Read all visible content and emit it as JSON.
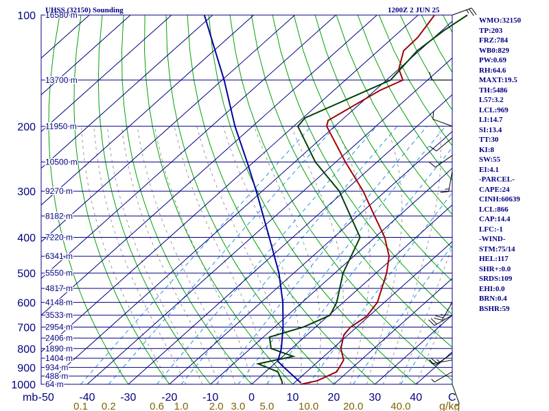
{
  "header": {
    "station": "UHSS (32150) Sounding",
    "time": "1200Z  2 JUN 25"
  },
  "stats": [
    "WMO:32150",
    "TP:203",
    "FRZ:784",
    "WB0:829",
    "PW:0.69",
    "RH:64.6",
    "MAXT:19.5",
    "TH:5486",
    "L57:3.2",
    "LCL:969",
    "LI:14.7",
    "SI:13.4",
    "TT:30",
    "KI:8",
    "SW:55",
    "EI:4.1",
    "-PARCEL-",
    "CAPE:24",
    "CINH:60639",
    "LCL:866",
    "CAP:14.4",
    "LFC:-1",
    "-WIND-",
    "STM:75/14",
    "HEL:117",
    "SHR+:0.0",
    "SRDS:109",
    "EHI:0.0",
    "BRN:0.4",
    "BSHR:59"
  ],
  "colors": {
    "isobar": "#000080",
    "isotherm": "#000080",
    "dry_adiabat": "#00a000",
    "moist_adiabat": "#999999",
    "mixing_ratio": "#2090e0",
    "temperature": "#a00000",
    "dewpoint": "#004000",
    "parcel": "#0000a0",
    "axis_text": "#000080",
    "mixing_text": "#806000"
  },
  "chart_data": {
    "type": "line",
    "chart_kind": "skew-T log-P sounding",
    "xlabel": "C",
    "x_ticks": [
      "-50",
      "-40",
      "-30",
      "-20",
      "-10",
      "0",
      "10",
      "20",
      "30",
      "40"
    ],
    "pressure_unit": "mb",
    "pressure_ticks": [
      100,
      200,
      300,
      400,
      500,
      600,
      700,
      800,
      900,
      1000
    ],
    "pressure_range": [
      100,
      1000
    ],
    "height_labels": [
      {
        "p": 100,
        "label": "16580 m"
      },
      {
        "p": 150,
        "label": "13700 m"
      },
      {
        "p": 200,
        "label": "11950 m"
      },
      {
        "p": 250,
        "label": "10500 m"
      },
      {
        "p": 300,
        "label": "9270 m"
      },
      {
        "p": 350,
        "label": "8182 m"
      },
      {
        "p": 400,
        "label": "7220 m"
      },
      {
        "p": 450,
        "label": "6341 m"
      },
      {
        "p": 500,
        "label": "5550 m"
      },
      {
        "p": 550,
        "label": "4817 m"
      },
      {
        "p": 600,
        "label": "4148 m"
      },
      {
        "p": 650,
        "label": "3533 m"
      },
      {
        "p": 700,
        "label": "2954 m"
      },
      {
        "p": 750,
        "label": "2406 m"
      },
      {
        "p": 800,
        "label": "1890 m"
      },
      {
        "p": 850,
        "label": "1404 m"
      },
      {
        "p": 900,
        "label": "934 m"
      },
      {
        "p": 950,
        "label": "488 m"
      },
      {
        "p": 1000,
        "label": "64 m"
      }
    ],
    "mixing_ratio_unit": "g/kg",
    "mixing_ratio_labels": [
      "0.1",
      "0.2",
      "0.6",
      "1.0",
      "2.0",
      "3.0",
      "5.0",
      "10.0",
      "20.0",
      "40.0"
    ],
    "mixing_ratio_values": [
      0.1,
      0.2,
      0.6,
      1.0,
      2.0,
      3.0,
      5.0,
      10.0,
      20.0,
      40.0
    ],
    "series": [
      {
        "key": "temperature",
        "points": [
          {
            "p": 1000,
            "t": 12.0
          },
          {
            "p": 978,
            "t": 15.0
          },
          {
            "p": 925,
            "t": 17.3
          },
          {
            "p": 860,
            "t": 15.8
          },
          {
            "p": 800,
            "t": 12.0
          },
          {
            "p": 735,
            "t": 9.0
          },
          {
            "p": 700,
            "t": 8.5
          },
          {
            "p": 655,
            "t": 9.5
          },
          {
            "p": 600,
            "t": 8.3
          },
          {
            "p": 500,
            "t": 2.6
          },
          {
            "p": 450,
            "t": -1.4
          },
          {
            "p": 400,
            "t": -7.6
          },
          {
            "p": 350,
            "t": -15.9
          },
          {
            "p": 300,
            "t": -25.4
          },
          {
            "p": 250,
            "t": -37.7
          },
          {
            "p": 200,
            "t": -52.0
          },
          {
            "p": 193,
            "t": -53.2
          },
          {
            "p": 160,
            "t": -48.8
          },
          {
            "p": 150,
            "t": -46.0
          },
          {
            "p": 140,
            "t": -50.0
          },
          {
            "p": 125,
            "t": -53.8
          },
          {
            "p": 115,
            "t": -54.0
          },
          {
            "p": 100,
            "t": -56.0
          }
        ]
      },
      {
        "key": "dewpoint",
        "points": [
          {
            "p": 1000,
            "t": 7.5
          },
          {
            "p": 980,
            "t": 6.5
          },
          {
            "p": 925,
            "t": 3.0
          },
          {
            "p": 880,
            "t": -4.0
          },
          {
            "p": 840,
            "t": 2.5
          },
          {
            "p": 800,
            "t": -5.0
          },
          {
            "p": 745,
            "t": -8.5
          },
          {
            "p": 700,
            "t": -3.0
          },
          {
            "p": 650,
            "t": 0.3
          },
          {
            "p": 600,
            "t": -1.6
          },
          {
            "p": 500,
            "t": -8.0
          },
          {
            "p": 400,
            "t": -13.6
          },
          {
            "p": 300,
            "t": -31.2
          },
          {
            "p": 250,
            "t": -45.0
          },
          {
            "p": 200,
            "t": -59.0
          },
          {
            "p": 190,
            "t": -59.5
          },
          {
            "p": 150,
            "t": -49.0
          },
          {
            "p": 125,
            "t": -50.5
          },
          {
            "p": 110,
            "t": -49.5
          },
          {
            "p": 100,
            "t": -48.0
          }
        ]
      },
      {
        "key": "parcel",
        "points": [
          {
            "p": 990,
            "t": 11.5
          },
          {
            "p": 900,
            "t": 3.3
          },
          {
            "p": 866,
            "t": 0.1
          },
          {
            "p": 800,
            "t": -2.5
          },
          {
            "p": 700,
            "t": -7.9
          },
          {
            "p": 600,
            "t": -14.7
          },
          {
            "p": 500,
            "t": -23.6
          },
          {
            "p": 400,
            "t": -35.7
          },
          {
            "p": 300,
            "t": -51.4
          },
          {
            "p": 250,
            "t": -61.6
          },
          {
            "p": 200,
            "t": -74.3
          },
          {
            "p": 150,
            "t": -89.5
          },
          {
            "p": 100,
            "t": -112.0
          }
        ]
      }
    ],
    "wind_barbs": [
      {
        "p": 100,
        "dir": 70,
        "spd": 25
      },
      {
        "p": 150,
        "dir": 270,
        "spd": 10
      },
      {
        "p": 200,
        "dir": 290,
        "spd": 10
      },
      {
        "p": 215,
        "dir": 230,
        "spd": 10
      },
      {
        "p": 240,
        "dir": 235,
        "spd": 10
      },
      {
        "p": 265,
        "dir": 190,
        "spd": 15
      },
      {
        "p": 600,
        "dir": 210,
        "spd": 25
      },
      {
        "p": 650,
        "dir": 240,
        "spd": 20
      },
      {
        "p": 825,
        "dir": 235,
        "spd": 25
      },
      {
        "p": 860,
        "dir": 260,
        "spd": 5
      },
      {
        "p": 925,
        "dir": 240,
        "spd": 5
      },
      {
        "p": 1000,
        "dir": 160,
        "spd": 5
      }
    ]
  }
}
